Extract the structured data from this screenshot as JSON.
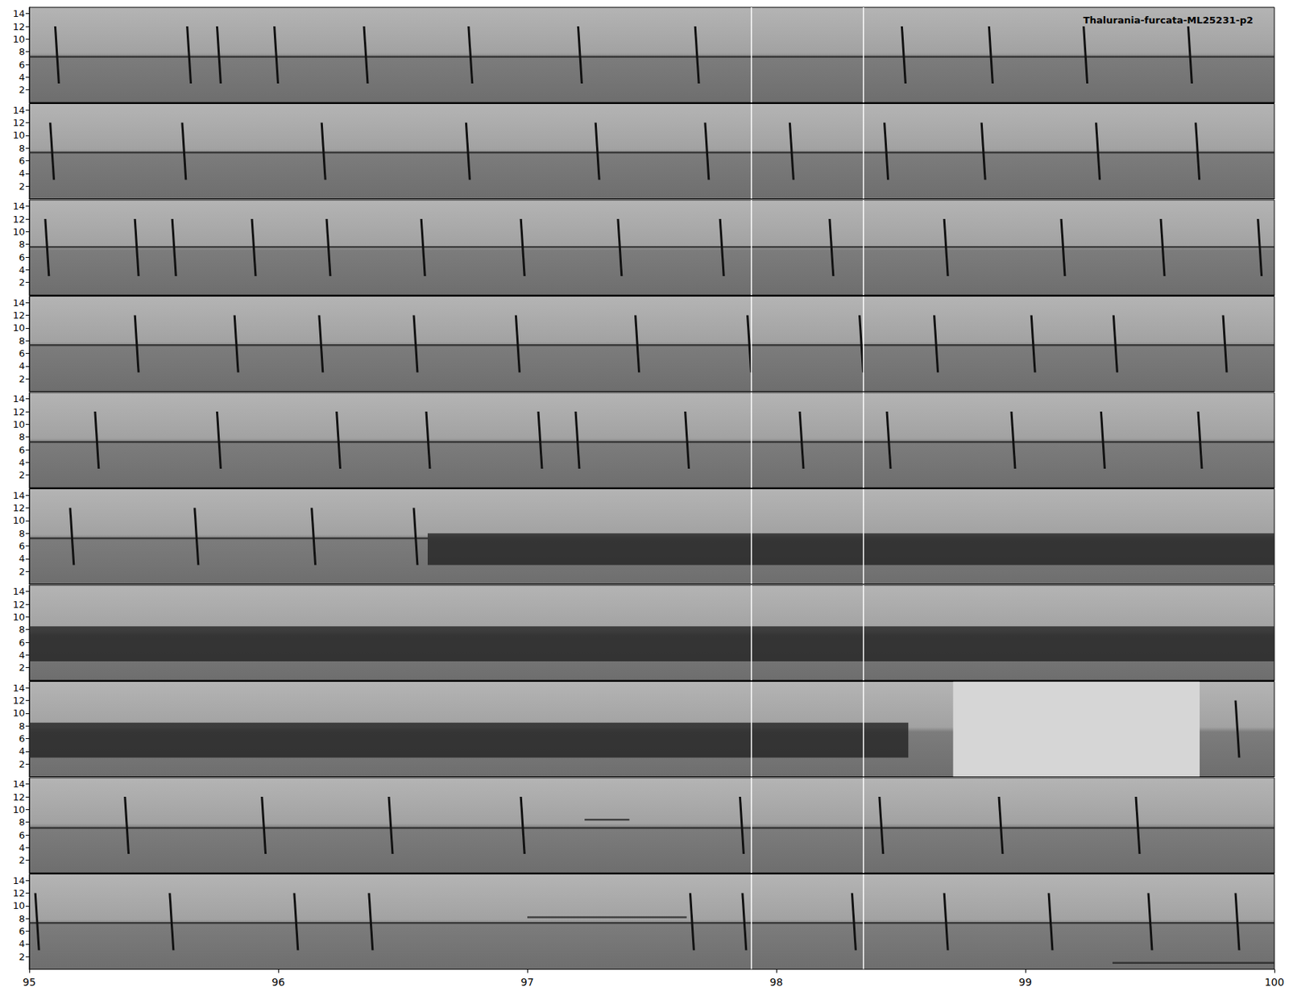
{
  "chart_data": {
    "type": "spectrogram",
    "title": "Thalurania-furcata-ML25231-p2",
    "xlim": [
      95,
      100
    ],
    "xticks": [
      95,
      96,
      97,
      98,
      99,
      100
    ],
    "ylim": [
      0,
      15
    ],
    "yticks": [
      2,
      4,
      6,
      8,
      10,
      12,
      14
    ],
    "click_range": [
      3,
      12
    ],
    "vlines": [
      97.9,
      98.35
    ],
    "panels": [
      {
        "tone": [
          [
            95,
            100,
            7.2
          ]
        ],
        "noise": [],
        "blank": [],
        "clicks": [
          95.11,
          95.64,
          95.76,
          95.99,
          96.35,
          96.77,
          97.21,
          97.68,
          98.51,
          98.86,
          99.24,
          99.66
        ]
      },
      {
        "tone": [
          [
            95,
            100,
            7.3
          ]
        ],
        "noise": [],
        "blank": [],
        "clicks": [
          95.09,
          95.62,
          96.18,
          96.76,
          97.28,
          97.72,
          98.06,
          98.44,
          98.83,
          99.29,
          99.69
        ]
      },
      {
        "tone": [
          [
            95,
            100,
            7.6
          ]
        ],
        "noise": [],
        "blank": [],
        "clicks": [
          95.07,
          95.43,
          95.58,
          95.9,
          96.2,
          96.58,
          96.98,
          97.37,
          97.78,
          98.22,
          98.68,
          99.15,
          99.55,
          99.94
        ]
      },
      {
        "tone": [
          [
            95,
            100,
            7.3
          ]
        ],
        "noise": [],
        "blank": [],
        "clicks": [
          95.43,
          95.83,
          96.17,
          96.55,
          96.96,
          97.44,
          97.89,
          98.34,
          98.64,
          99.03,
          99.36,
          99.8
        ]
      },
      {
        "tone": [
          [
            95,
            100,
            7.2
          ]
        ],
        "noise": [],
        "blank": [],
        "clicks": [
          95.27,
          95.76,
          96.24,
          96.6,
          97.05,
          97.2,
          97.64,
          98.1,
          98.45,
          98.95,
          99.31,
          99.7
        ]
      },
      {
        "tone": [
          [
            95,
            96.6,
            7.2
          ]
        ],
        "noise": [
          [
            96.6,
            100,
            3,
            8
          ]
        ],
        "blank": [],
        "clicks": [
          95.17,
          95.67,
          96.14,
          96.55
        ]
      },
      {
        "tone": [],
        "noise": [
          [
            95,
            100,
            3,
            8.5
          ]
        ],
        "blank": [],
        "clicks": []
      },
      {
        "tone": [],
        "noise": [
          [
            95,
            98.53,
            3,
            8.5
          ]
        ],
        "blank": [
          [
            98.71,
            99.7
          ]
        ],
        "clicks": [
          99.85
        ]
      },
      {
        "tone": [
          [
            95,
            100,
            7.1
          ],
          [
            97.23,
            97.41,
            8.4
          ]
        ],
        "noise": [],
        "blank": [],
        "clicks": [
          95.39,
          95.94,
          96.45,
          96.98,
          97.86,
          98.42,
          98.9,
          99.45
        ]
      },
      {
        "tone": [
          [
            95,
            100,
            7.3
          ],
          [
            97.0,
            97.64,
            8.2
          ],
          [
            99.35,
            100,
            1.0
          ]
        ],
        "noise": [],
        "blank": [],
        "clicks": [
          95.03,
          95.57,
          96.07,
          96.37,
          97.66,
          97.87,
          98.31,
          98.68,
          99.1,
          99.5,
          99.85
        ]
      }
    ]
  }
}
